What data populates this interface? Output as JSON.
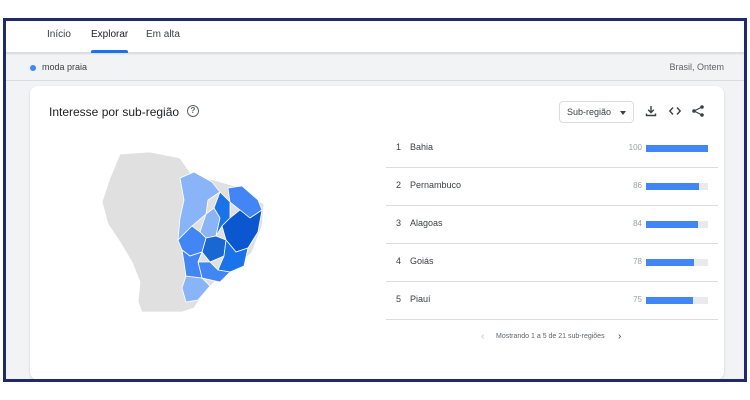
{
  "nav": {
    "tabs": [
      {
        "label": "Início",
        "active": false
      },
      {
        "label": "Explorar",
        "active": true
      },
      {
        "label": "Em alta",
        "active": false
      }
    ],
    "accent": "#1a73e8"
  },
  "term_bar": {
    "term": "moda praia",
    "term_color": "#4285f4",
    "meta": "Brasil, Ontem"
  },
  "card": {
    "title": "Interesse por sub-região",
    "help_icon": "help-circle-icon",
    "select_label": "Sub-região",
    "tools": [
      "download-icon",
      "embed-code-icon",
      "share-icon"
    ]
  },
  "ranking": [
    {
      "rank": "1",
      "name": "Bahia",
      "value": "100",
      "fraction": 1.0
    },
    {
      "rank": "2",
      "name": "Pernambuco",
      "value": "86",
      "fraction": 0.86
    },
    {
      "rank": "3",
      "name": "Alagoas",
      "value": "84",
      "fraction": 0.84
    },
    {
      "rank": "4",
      "name": "Goiás",
      "value": "78",
      "fraction": 0.78
    },
    {
      "rank": "5",
      "name": "Piauí",
      "value": "75",
      "fraction": 0.75
    }
  ],
  "bar_color": "#4285f4",
  "pagination": {
    "text": "Mostrando 1 a 5 de 21 sub-regiões"
  }
}
